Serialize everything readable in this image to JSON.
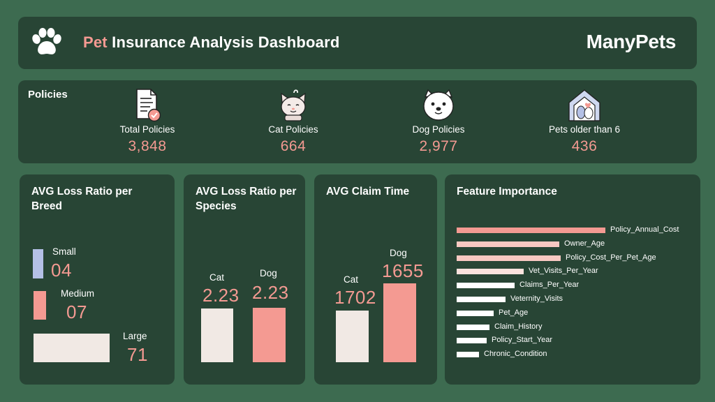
{
  "header": {
    "title_accent": "Pet",
    "title_rest": "Insurance Analysis Dashboard",
    "brand": "ManyPets"
  },
  "policies": {
    "section_label": "Policies",
    "kpis": [
      {
        "label": "Total Policies",
        "value": "3,848",
        "icon": "document-check-icon"
      },
      {
        "label": "Cat Policies",
        "value": "664",
        "icon": "cat-icon"
      },
      {
        "label": "Dog Policies",
        "value": "2,977",
        "icon": "dog-icon"
      },
      {
        "label": "Pets older than 6",
        "value": "436",
        "icon": "pet-house-icon"
      }
    ]
  },
  "breed": {
    "title": "AVG Loss Ratio per Breed",
    "items": [
      {
        "label": "Small",
        "value": "04",
        "color": "#b4c0e6"
      },
      {
        "label": "Medium",
        "value": "07",
        "color": "#f49a92"
      },
      {
        "label": "Large",
        "value": "71",
        "color": "#f1e9e4"
      }
    ]
  },
  "species": {
    "title": "AVG Loss Ratio per Species",
    "items": [
      {
        "label": "Cat",
        "value": "2.23",
        "color": "#f1e9e4"
      },
      {
        "label": "Dog",
        "value": "2.23",
        "color": "#f49a92"
      }
    ]
  },
  "claim_time": {
    "title": "AVG Claim Time",
    "items": [
      {
        "label": "Cat",
        "value": "1702",
        "color": "#f1e9e4"
      },
      {
        "label": "Dog",
        "value": "1655",
        "color": "#f49a92"
      }
    ]
  },
  "feature_importance": {
    "title": "Feature Importance",
    "colors": {
      "top": "#f49a92",
      "high": "#f8c9c2",
      "mid": "#fbe2dd",
      "low": "#ffffff"
    },
    "features": [
      {
        "name": "Policy_Annual_Cost",
        "importance": 1.0,
        "tone": "top"
      },
      {
        "name": "Owner_Age",
        "importance": 0.69,
        "tone": "high"
      },
      {
        "name": "Policy_Cost_Per_Pet_Age",
        "importance": 0.7,
        "tone": "high"
      },
      {
        "name": "Vet_Visits_Per_Year",
        "importance": 0.45,
        "tone": "mid"
      },
      {
        "name": "Claims_Per_Year",
        "importance": 0.39,
        "tone": "low"
      },
      {
        "name": "Veternity_Visits",
        "importance": 0.33,
        "tone": "low"
      },
      {
        "name": "Pet_Age",
        "importance": 0.25,
        "tone": "low"
      },
      {
        "name": "Claim_History",
        "importance": 0.22,
        "tone": "low"
      },
      {
        "name": "Policy_Start_Year",
        "importance": 0.2,
        "tone": "low"
      },
      {
        "name": "Chronic_Condition",
        "importance": 0.15,
        "tone": "low"
      }
    ]
  }
}
